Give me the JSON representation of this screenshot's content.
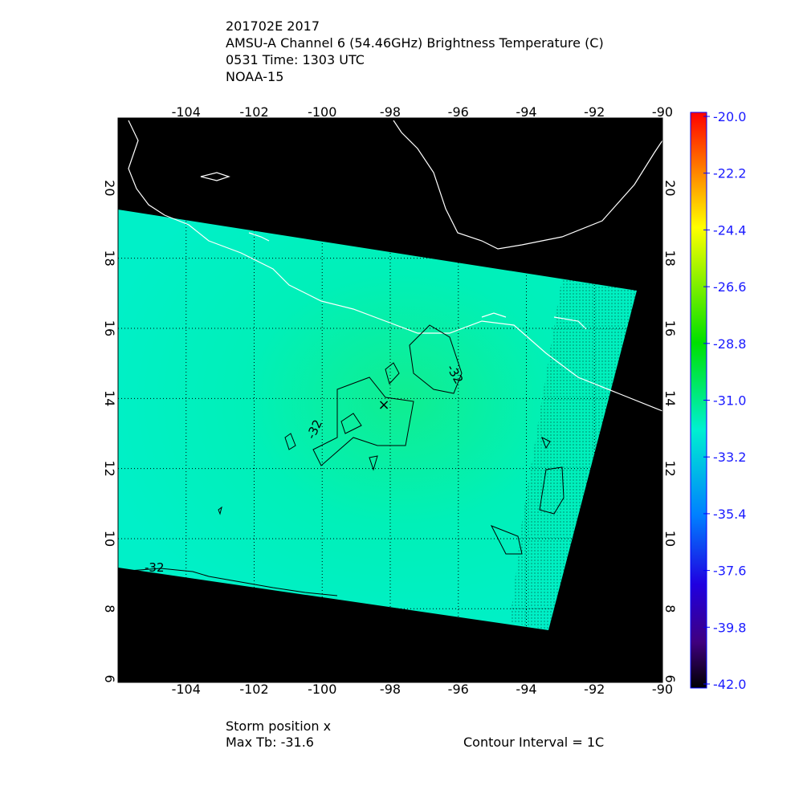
{
  "header": {
    "lines": [
      "201702E 2017",
      "AMSU-A Channel 6 (54.46GHz) Brightness Temperature (C)",
      "0531 Time: 1303 UTC",
      "NOAA-15"
    ]
  },
  "map": {
    "lon_range": [
      -106,
      -90
    ],
    "lat_range": [
      5.9,
      22
    ],
    "lon_ticks": [
      -104,
      -102,
      -100,
      -98,
      -96,
      -94,
      -92,
      -90
    ],
    "lat_ticks": [
      6,
      8,
      10,
      12,
      14,
      16,
      18,
      20
    ],
    "contour_labels": [
      "-32",
      "-32",
      "-32"
    ]
  },
  "colorbar": {
    "range": [
      -42,
      -20
    ],
    "ticks": [
      {
        "value": -20,
        "label": "-20.0"
      },
      {
        "value": -22.2,
        "label": "-22.2"
      },
      {
        "value": -24.4,
        "label": "-24.4"
      },
      {
        "value": -26.6,
        "label": "-26.6"
      },
      {
        "value": -28.8,
        "label": "-28.8"
      },
      {
        "value": -31,
        "label": "-31.0"
      },
      {
        "value": -33.2,
        "label": "-33.2"
      },
      {
        "value": -35.4,
        "label": "-35.4"
      },
      {
        "value": -37.6,
        "label": "-37.6"
      },
      {
        "value": -39.8,
        "label": "-39.8"
      },
      {
        "value": -42,
        "label": "-42.0"
      }
    ]
  },
  "footer": {
    "storm": "Storm position x",
    "max_tb": "Max Tb: -31.6",
    "interval": "Contour Interval = 1C"
  }
}
